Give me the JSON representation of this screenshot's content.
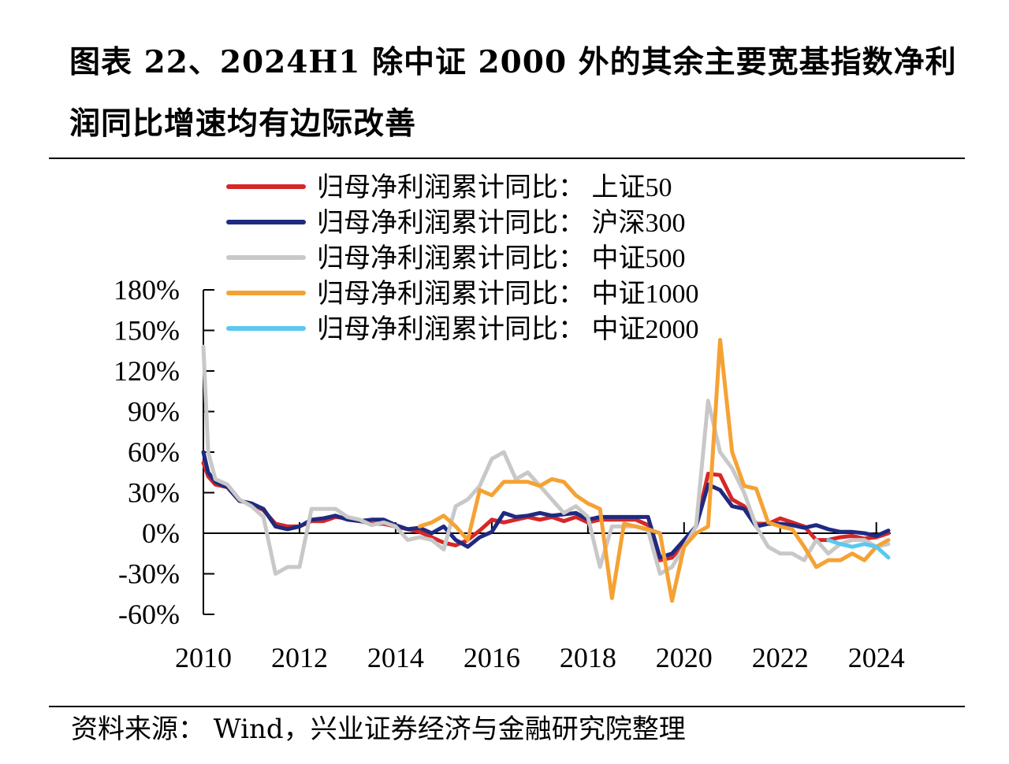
{
  "title": "图表 22、2024H1 除中证 2000 外的其余主要宽基指数净利润同比增速均有边际改善",
  "source": "资料来源： Wind，兴业证券经济与金融研究院整理",
  "chart_data": {
    "type": "line",
    "x_unit": "year",
    "xlim": [
      2010,
      2024.3
    ],
    "ylim": [
      -60,
      180
    ],
    "x_ticks": [
      "2010",
      "2012",
      "2014",
      "2016",
      "2018",
      "2020",
      "2022",
      "2024"
    ],
    "y_ticks": [
      "180%",
      "150%",
      "120%",
      "90%",
      "60%",
      "30%",
      "0%",
      "-30%",
      "-60%"
    ],
    "grid": false,
    "legend_position": "top",
    "series": [
      {
        "name": "归母净利润累计同比： 上证50",
        "color": "#d62728",
        "x": [
          2010.0,
          2010.1,
          2010.25,
          2010.5,
          2010.75,
          2011.0,
          2011.25,
          2011.5,
          2011.75,
          2012.0,
          2012.25,
          2012.5,
          2012.75,
          2013.0,
          2013.25,
          2013.5,
          2013.75,
          2014.0,
          2014.25,
          2014.5,
          2014.75,
          2015.0,
          2015.25,
          2015.5,
          2015.75,
          2016.0,
          2016.25,
          2016.5,
          2016.75,
          2017.0,
          2017.25,
          2017.5,
          2017.75,
          2018.0,
          2018.25,
          2018.5,
          2018.75,
          2019.0,
          2019.25,
          2019.5,
          2019.75,
          2020.0,
          2020.25,
          2020.5,
          2020.75,
          2021.0,
          2021.25,
          2021.5,
          2021.75,
          2022.0,
          2022.25,
          2022.5,
          2022.75,
          2023.0,
          2023.25,
          2023.5,
          2023.75,
          2024.0,
          2024.25
        ],
        "values": [
          52,
          42,
          36,
          34,
          24,
          22,
          17,
          7,
          5,
          5,
          9,
          9,
          12,
          11,
          9,
          7,
          7,
          5,
          3,
          1,
          -3,
          -7,
          -9,
          -5,
          2,
          10,
          8,
          10,
          12,
          10,
          12,
          9,
          12,
          8,
          10,
          10,
          10,
          10,
          6,
          -20,
          -18,
          -8,
          5,
          44,
          43,
          25,
          20,
          7,
          7,
          11,
          8,
          5,
          -5,
          -5,
          -3,
          -2,
          -4,
          -3,
          0
        ]
      },
      {
        "name": "归母净利润累计同比： 沪深300",
        "color": "#1f2a80",
        "x": [
          2010.0,
          2010.1,
          2010.25,
          2010.5,
          2010.75,
          2011.0,
          2011.25,
          2011.5,
          2011.75,
          2012.0,
          2012.25,
          2012.5,
          2012.75,
          2013.0,
          2013.25,
          2013.5,
          2013.75,
          2014.0,
          2014.25,
          2014.5,
          2014.75,
          2015.0,
          2015.25,
          2015.5,
          2015.75,
          2016.0,
          2016.25,
          2016.5,
          2016.75,
          2017.0,
          2017.25,
          2017.5,
          2017.75,
          2018.0,
          2018.25,
          2018.5,
          2018.75,
          2019.0,
          2019.25,
          2019.5,
          2019.75,
          2020.0,
          2020.25,
          2020.5,
          2020.75,
          2021.0,
          2021.25,
          2021.5,
          2021.75,
          2022.0,
          2022.25,
          2022.5,
          2022.75,
          2023.0,
          2023.25,
          2023.5,
          2023.75,
          2024.0,
          2024.25
        ],
        "values": [
          60,
          45,
          38,
          34,
          24,
          22,
          18,
          5,
          3,
          5,
          10,
          11,
          13,
          10,
          9,
          10,
          10,
          6,
          3,
          4,
          0,
          5,
          -5,
          -10,
          -3,
          1,
          15,
          12,
          13,
          15,
          13,
          14,
          15,
          10,
          12,
          12,
          12,
          12,
          12,
          -18,
          -15,
          -5,
          5,
          36,
          32,
          20,
          18,
          5,
          7,
          7,
          6,
          4,
          6,
          3,
          1,
          1,
          0,
          -2,
          2
        ]
      },
      {
        "name": "归母净利润累计同比： 中证500",
        "color": "#c8c8c8",
        "x": [
          2010.0,
          2010.1,
          2010.25,
          2010.5,
          2010.75,
          2011.0,
          2011.25,
          2011.5,
          2011.75,
          2012.0,
          2012.25,
          2012.5,
          2012.75,
          2013.0,
          2013.25,
          2013.5,
          2013.75,
          2014.0,
          2014.25,
          2014.5,
          2014.75,
          2015.0,
          2015.25,
          2015.5,
          2015.75,
          2016.0,
          2016.25,
          2016.5,
          2016.75,
          2017.0,
          2017.25,
          2017.5,
          2017.75,
          2018.0,
          2018.25,
          2018.5,
          2018.75,
          2019.0,
          2019.25,
          2019.5,
          2019.75,
          2020.0,
          2020.25,
          2020.5,
          2020.75,
          2021.0,
          2021.25,
          2021.5,
          2021.75,
          2022.0,
          2022.25,
          2022.5,
          2022.75,
          2023.0,
          2023.25,
          2023.5,
          2023.75,
          2024.0,
          2024.25
        ],
        "values": [
          138,
          60,
          40,
          36,
          25,
          20,
          12,
          -30,
          -25,
          -25,
          18,
          18,
          18,
          12,
          10,
          6,
          8,
          5,
          -5,
          -3,
          -5,
          -12,
          20,
          25,
          35,
          55,
          60,
          40,
          45,
          35,
          25,
          15,
          20,
          12,
          -25,
          5,
          5,
          5,
          2,
          -30,
          -25,
          -10,
          5,
          98,
          60,
          48,
          30,
          5,
          -10,
          -15,
          -15,
          -20,
          -5,
          -15,
          -8,
          -5,
          -5,
          -10,
          -8
        ]
      },
      {
        "name": "归母净利润累计同比： 中证1000",
        "color": "#f5a234",
        "x": [
          2014.5,
          2014.75,
          2015.0,
          2015.25,
          2015.5,
          2015.75,
          2016.0,
          2016.25,
          2016.5,
          2016.75,
          2017.0,
          2017.25,
          2017.5,
          2017.75,
          2018.0,
          2018.25,
          2018.5,
          2018.75,
          2019.0,
          2019.25,
          2019.5,
          2019.75,
          2020.0,
          2020.25,
          2020.5,
          2020.75,
          2021.0,
          2021.25,
          2021.5,
          2021.75,
          2022.0,
          2022.25,
          2022.5,
          2022.75,
          2023.0,
          2023.25,
          2023.5,
          2023.75,
          2024.0,
          2024.25
        ],
        "values": [
          5,
          8,
          13,
          5,
          -5,
          32,
          28,
          38,
          38,
          38,
          35,
          40,
          38,
          28,
          22,
          18,
          -48,
          7,
          5,
          3,
          0,
          -50,
          -10,
          0,
          5,
          143,
          60,
          35,
          33,
          8,
          5,
          3,
          -10,
          -25,
          -20,
          -20,
          -15,
          -20,
          -10,
          -5
        ]
      },
      {
        "name": "归母净利润累计同比： 中证2000",
        "color": "#5bc8ef",
        "x": [
          2023.0,
          2023.25,
          2023.5,
          2023.75,
          2024.0,
          2024.25
        ],
        "values": [
          -5,
          -8,
          -10,
          -8,
          -10,
          -18
        ]
      }
    ]
  }
}
